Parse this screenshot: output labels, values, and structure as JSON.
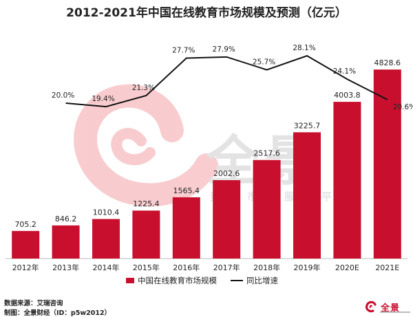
{
  "chart_data": {
    "type": "bar",
    "title": "2012-2021年中国在线教育市场规模及预测（亿元）",
    "categories": [
      "2012年",
      "2013年",
      "2014年",
      "2015年",
      "2016年",
      "2017年",
      "2018年",
      "2019年",
      "2020E",
      "2021E"
    ],
    "series": [
      {
        "name": "中国在线教育市场规模",
        "type": "bar",
        "color": "#c8102e",
        "values": [
          705.2,
          846.2,
          1010.4,
          1225.4,
          1565.4,
          2002.6,
          2517.6,
          3225.7,
          4003.8,
          4828.6
        ],
        "labels": [
          "705.2",
          "846.2",
          "1010.4",
          "1225.4",
          "1565.4",
          "2002.6",
          "2517.6",
          "3225.7",
          "4003.8",
          "4828.6"
        ]
      },
      {
        "name": "同比增速",
        "type": "line",
        "color": "#111111",
        "values": [
          null,
          20.0,
          19.4,
          21.3,
          27.7,
          27.9,
          25.7,
          28.1,
          24.1,
          20.6
        ],
        "labels": [
          null,
          "20.0%",
          "19.4%",
          "21.3%",
          "27.7%",
          "27.9%",
          "25.7%",
          "28.1%",
          "24.1%",
          "20.6%"
        ]
      }
    ],
    "bar_axis_range": [
      0,
      5200
    ],
    "line_axis_range": [
      12,
      32
    ],
    "grid": false,
    "legend_position": "bottom"
  },
  "source": {
    "data_source": "数据来源：艾瑞咨询",
    "producer": "制图：全景财经（ID：p5w2012）"
  },
  "watermark": {
    "brand": "全景",
    "tagline": "资本市场服务平台"
  },
  "logo": {
    "text": "全景"
  }
}
